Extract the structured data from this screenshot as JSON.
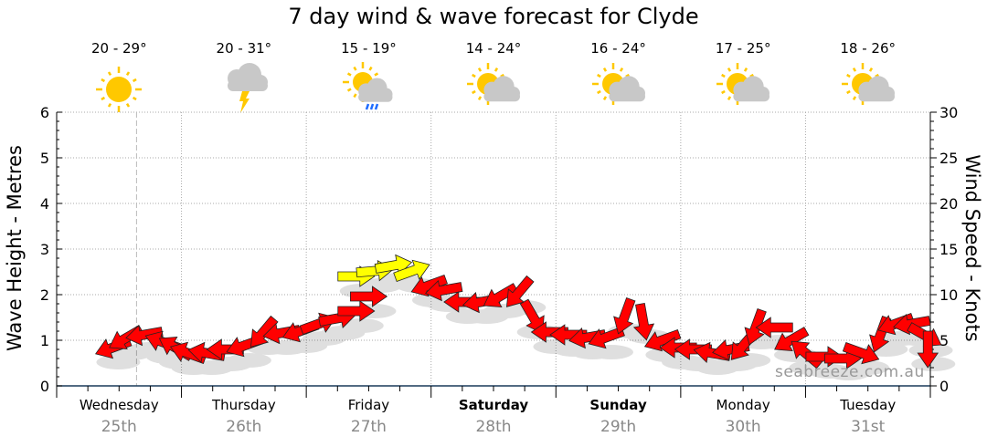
{
  "chart_data": {
    "type": "line",
    "title": "7 day wind & wave forecast for Clyde",
    "ylabel_left": "Wave Height - Metres",
    "ylabel_right": "Wind Speed - Knots",
    "ylim_left": [
      0,
      6
    ],
    "ylim_right": [
      0,
      30
    ],
    "yticks_left": [
      "0",
      "1",
      "2",
      "3",
      "4",
      "5",
      "6"
    ],
    "yticks_right": [
      "0",
      "5",
      "10",
      "15",
      "20",
      "25",
      "30"
    ],
    "grid": true,
    "days": [
      {
        "day": "Wednesday",
        "date": "25th",
        "bold": false,
        "temp": "20 - 29°",
        "icon": "sunny-icon"
      },
      {
        "day": "Thursday",
        "date": "26th",
        "bold": false,
        "temp": "20 - 31°",
        "icon": "storm-cloud-icon"
      },
      {
        "day": "Friday",
        "date": "27th",
        "bold": false,
        "temp": "15 - 19°",
        "icon": "sun-cloud-rain-icon"
      },
      {
        "day": "Saturday",
        "date": "28th",
        "bold": true,
        "temp": "14 - 24°",
        "icon": "partly-cloudy-icon"
      },
      {
        "day": "Sunday",
        "date": "29th",
        "bold": true,
        "temp": "16 - 24°",
        "icon": "partly-cloudy-icon"
      },
      {
        "day": "Monday",
        "date": "30th",
        "bold": false,
        "temp": "17 - 25°",
        "icon": "partly-cloudy-icon"
      },
      {
        "day": "Tuesday",
        "date": "31st",
        "bold": false,
        "temp": "18 - 26°",
        "icon": "partly-cloudy-icon"
      }
    ],
    "current_time_day": 0.64,
    "wind_series": {
      "name": "Wind (knots, arrow direction in degrees, 0 = pointing right)",
      "points": [
        {
          "t": 0.45,
          "kn": 4.2,
          "dir": 200
        },
        {
          "t": 0.55,
          "kn": 5.2,
          "dir": 210
        },
        {
          "t": 0.7,
          "kn": 5.6,
          "dir": 190
        },
        {
          "t": 0.85,
          "kn": 4.8,
          "dir": 160
        },
        {
          "t": 0.95,
          "kn": 4.2,
          "dir": 150
        },
        {
          "t": 1.05,
          "kn": 3.6,
          "dir": 160
        },
        {
          "t": 1.2,
          "kn": 3.6,
          "dir": 170
        },
        {
          "t": 1.35,
          "kn": 4.0,
          "dir": 180
        },
        {
          "t": 1.5,
          "kn": 4.4,
          "dir": 200
        },
        {
          "t": 1.65,
          "kn": 5.8,
          "dir": 230
        },
        {
          "t": 1.8,
          "kn": 5.8,
          "dir": 190
        },
        {
          "t": 1.95,
          "kn": 6.0,
          "dir": 200
        },
        {
          "t": 2.1,
          "kn": 6.8,
          "dir": 20
        },
        {
          "t": 2.25,
          "kn": 7.4,
          "dir": 10
        },
        {
          "t": 2.4,
          "kn": 8.2,
          "dir": 0
        },
        {
          "t": 2.5,
          "kn": 9.8,
          "dir": 0
        },
        {
          "t": 2.4,
          "kn": 12.0,
          "dir": 0
        },
        {
          "t": 2.55,
          "kn": 12.6,
          "dir": 5
        },
        {
          "t": 2.7,
          "kn": 13.2,
          "dir": 10
        },
        {
          "t": 2.85,
          "kn": 12.6,
          "dir": 20
        },
        {
          "t": 2.98,
          "kn": 11.0,
          "dir": 200
        },
        {
          "t": 3.1,
          "kn": 10.5,
          "dir": 190
        },
        {
          "t": 3.25,
          "kn": 9.2,
          "dir": 180
        },
        {
          "t": 3.4,
          "kn": 9.2,
          "dir": 190
        },
        {
          "t": 3.55,
          "kn": 9.8,
          "dir": 210
        },
        {
          "t": 3.7,
          "kn": 10.2,
          "dir": 230
        },
        {
          "t": 3.82,
          "kn": 7.5,
          "dir": 300
        },
        {
          "t": 3.95,
          "kn": 5.9,
          "dir": 180
        },
        {
          "t": 4.1,
          "kn": 5.6,
          "dir": 180
        },
        {
          "t": 4.25,
          "kn": 5.3,
          "dir": 190
        },
        {
          "t": 4.4,
          "kn": 5.3,
          "dir": 200
        },
        {
          "t": 4.55,
          "kn": 7.6,
          "dir": 250
        },
        {
          "t": 4.7,
          "kn": 7.0,
          "dir": 280
        },
        {
          "t": 4.85,
          "kn": 5.0,
          "dir": 200
        },
        {
          "t": 4.98,
          "kn": 4.2,
          "dir": 180
        },
        {
          "t": 5.1,
          "kn": 4.0,
          "dir": 180
        },
        {
          "t": 5.25,
          "kn": 3.6,
          "dir": 170
        },
        {
          "t": 5.4,
          "kn": 4.0,
          "dir": 190
        },
        {
          "t": 5.5,
          "kn": 4.4,
          "dir": 230
        },
        {
          "t": 5.6,
          "kn": 6.4,
          "dir": 250
        },
        {
          "t": 5.75,
          "kn": 6.4,
          "dir": 180
        },
        {
          "t": 5.88,
          "kn": 5.0,
          "dir": 210
        },
        {
          "t": 6.0,
          "kn": 3.6,
          "dir": 140
        },
        {
          "t": 6.15,
          "kn": 3.2,
          "dir": 0
        },
        {
          "t": 6.3,
          "kn": 3.0,
          "dir": 0
        },
        {
          "t": 6.45,
          "kn": 3.6,
          "dir": 340
        },
        {
          "t": 6.6,
          "kn": 5.6,
          "dir": 250
        },
        {
          "t": 6.72,
          "kn": 6.8,
          "dir": 200
        },
        {
          "t": 6.85,
          "kn": 6.8,
          "dir": 190
        },
        {
          "t": 6.96,
          "kn": 5.5,
          "dir": 330
        },
        {
          "t": 6.98,
          "kn": 4.0,
          "dir": 270
        }
      ]
    }
  },
  "watermark": "seabreeze.com.au"
}
